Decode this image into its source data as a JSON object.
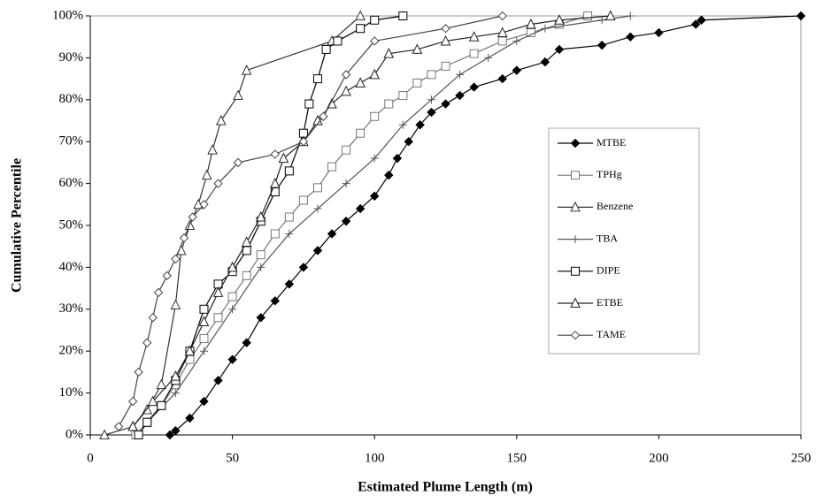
{
  "chart_data": {
    "type": "line",
    "xlabel": "Estimated Plume Length (m)",
    "ylabel": "Cumulative Percentile",
    "xlim": [
      0,
      250
    ],
    "xticks": [
      0,
      50,
      100,
      150,
      200,
      250
    ],
    "ylim": [
      0,
      100
    ],
    "yticks": [
      {
        "value": 0,
        "label": "0%"
      },
      {
        "value": 10,
        "label": "10%"
      },
      {
        "value": 20,
        "label": "20%"
      },
      {
        "value": 30,
        "label": "30%"
      },
      {
        "value": 40,
        "label": "40%"
      },
      {
        "value": 50,
        "label": "50%"
      },
      {
        "value": 60,
        "label": "60%"
      },
      {
        "value": 70,
        "label": "70%"
      },
      {
        "value": 80,
        "label": "80%"
      },
      {
        "value": 90,
        "label": "90%"
      },
      {
        "value": 100,
        "label": "100%"
      }
    ],
    "grid": false,
    "legend": "right",
    "series": [
      {
        "name": "MTBE",
        "color": "#000000",
        "marker": "diamond-filled",
        "x": [
          28,
          30,
          35,
          40,
          45,
          50,
          55,
          60,
          65,
          70,
          75,
          80,
          85,
          90,
          95,
          100,
          105,
          108,
          112,
          116,
          120,
          125,
          130,
          135,
          145,
          150,
          160,
          165,
          180,
          190,
          200,
          213,
          215,
          250
        ],
        "values": [
          0,
          1,
          4,
          8,
          13,
          18,
          22,
          28,
          32,
          36,
          40,
          44,
          48,
          51,
          54,
          57,
          62,
          66,
          70,
          74,
          77,
          79,
          81,
          83,
          85,
          87,
          89,
          92,
          93,
          95,
          96,
          98,
          99,
          100
        ]
      },
      {
        "name": "TPHg",
        "color": "#777777",
        "marker": "square",
        "x": [
          16,
          20,
          25,
          30,
          35,
          40,
          45,
          50,
          55,
          60,
          65,
          70,
          75,
          80,
          85,
          90,
          95,
          100,
          105,
          110,
          115,
          120,
          125,
          135,
          145,
          155,
          165,
          175
        ],
        "values": [
          0,
          3,
          7,
          12,
          18,
          23,
          28,
          33,
          38,
          43,
          48,
          52,
          56,
          59,
          64,
          68,
          72,
          76,
          79,
          81,
          84,
          86,
          88,
          91,
          94,
          96,
          98,
          100
        ]
      },
      {
        "name": "Benzene",
        "color": "#333333",
        "marker": "triangle",
        "x": [
          5,
          15,
          20,
          25,
          30,
          32,
          35,
          38,
          41,
          43,
          46,
          52,
          55,
          85,
          95
        ],
        "values": [
          0,
          2,
          6,
          12,
          31,
          44,
          50,
          55,
          62,
          68,
          75,
          81,
          87,
          94,
          100
        ]
      },
      {
        "name": "TBA",
        "color": "#555555",
        "marker": "plus",
        "x": [
          20,
          30,
          40,
          50,
          60,
          70,
          80,
          90,
          100,
          110,
          120,
          130,
          140,
          150,
          160,
          180,
          190
        ],
        "values": [
          3,
          10,
          20,
          30,
          40,
          48,
          54,
          60,
          66,
          74,
          80,
          86,
          90,
          94,
          97,
          99,
          100
        ]
      },
      {
        "name": "DIPE",
        "color": "#000000",
        "marker": "square",
        "x": [
          17,
          20,
          25,
          30,
          35,
          40,
          45,
          50,
          55,
          60,
          65,
          70,
          75,
          77,
          80,
          83,
          87,
          95,
          100,
          110
        ],
        "values": [
          0,
          3,
          7,
          13,
          20,
          30,
          36,
          39,
          44,
          51,
          58,
          63,
          72,
          79,
          85,
          92,
          94,
          97,
          99,
          100
        ]
      },
      {
        "name": "ETBE",
        "color": "#222222",
        "marker": "triangle",
        "x": [
          15,
          22,
          30,
          35,
          40,
          45,
          50,
          55,
          60,
          65,
          68,
          75,
          80,
          85,
          90,
          95,
          100,
          105,
          115,
          125,
          135,
          145,
          155,
          165,
          183
        ],
        "values": [
          2,
          8,
          14,
          20,
          27,
          34,
          40,
          46,
          52,
          60,
          66,
          70,
          75,
          79,
          82,
          84,
          86,
          91,
          92,
          94,
          95,
          96,
          98,
          99,
          100
        ]
      },
      {
        "name": "TAME",
        "color": "#444444",
        "marker": "diamond",
        "x": [
          10,
          15,
          17,
          20,
          22,
          24,
          27,
          30,
          33,
          36,
          40,
          45,
          52,
          65,
          75,
          82,
          90,
          100,
          125,
          145
        ],
        "values": [
          2,
          8,
          15,
          22,
          28,
          34,
          38,
          42,
          47,
          52,
          55,
          60,
          65,
          67,
          70,
          76,
          86,
          94,
          97,
          100
        ]
      }
    ]
  }
}
